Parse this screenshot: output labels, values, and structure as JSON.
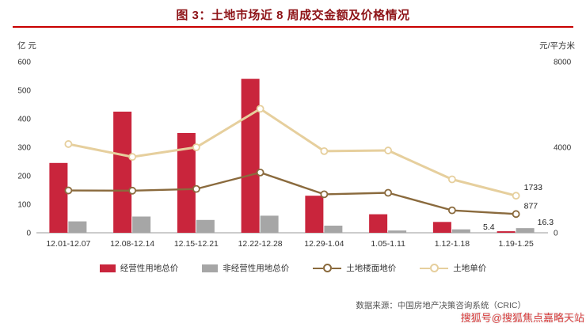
{
  "title": "图 3：土地市场近 8 周成交金额及价格情况",
  "left_unit": "亿 元",
  "right_unit": "元/平方米",
  "source": "数据来源：中国房地产决策咨询系统（CRIC）",
  "watermark": "搜狐号@搜狐焦点嘉略天站",
  "chart_data": {
    "type": "bar",
    "subtype": "bar-line-combo",
    "title": "图 3：土地市场近 8 周成交金额及价格情况",
    "categories": [
      "12.01-12.07",
      "12.08-12.14",
      "12.15-12.21",
      "12.22-12.28",
      "12.29-1.04",
      "1.05-1.11",
      "1.12-1.18",
      "1.19-1.25"
    ],
    "left_axis": {
      "label": "亿 元",
      "min": 0,
      "max": 600,
      "ticks": [
        0,
        100,
        200,
        300,
        400,
        500,
        600
      ]
    },
    "right_axis": {
      "label": "元/平方米",
      "min": 0,
      "max": 8000,
      "ticks": [
        0,
        4000,
        8000
      ]
    },
    "grid": false,
    "legend_position": "bottom",
    "series": [
      {
        "name": "经营性用地总价",
        "type": "bar",
        "axis": "left",
        "color": "#c9253c",
        "values": [
          245,
          425,
          350,
          540,
          130,
          65,
          38,
          5.4
        ],
        "last_label": "5.4"
      },
      {
        "name": "非经营性用地总价",
        "type": "bar",
        "axis": "left",
        "color": "#a6a6a6",
        "values": [
          40,
          57,
          45,
          60,
          25,
          8,
          12,
          16.3
        ],
        "last_label": "16.3"
      },
      {
        "name": "土地楼面地价",
        "type": "line",
        "axis": "right",
        "color": "#8a6a3d",
        "width": 2.4,
        "values": [
          1980,
          1970,
          2050,
          2820,
          1800,
          1870,
          1050,
          877
        ],
        "last_label": "877"
      },
      {
        "name": "土地单价",
        "type": "line",
        "axis": "right",
        "color": "#e6cf9d",
        "width": 3,
        "values": [
          4150,
          3550,
          4000,
          5800,
          3820,
          3850,
          2500,
          1733
        ],
        "last_label": "1733"
      }
    ]
  }
}
